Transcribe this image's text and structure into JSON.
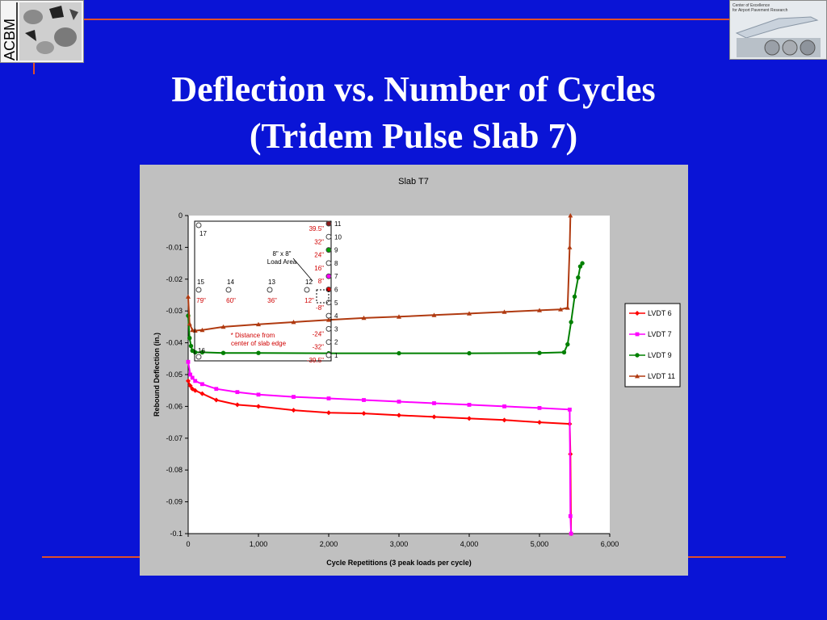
{
  "slide": {
    "title_line1": "Deflection vs. Number of Cycles",
    "title_line2": "(Tridem Pulse Slab 7)",
    "logo_left_text": "ACBM",
    "logo_right_text": [
      "Center of Excellence",
      "for Airport Pavement Research"
    ]
  },
  "colors": {
    "background": "#0a14d6",
    "accent_rule": "#e0502a",
    "plot_panel": "#c0c0c0"
  },
  "chart_data": {
    "type": "line",
    "title": "Slab T7",
    "xlabel": "Cycle Repetitions (3 peak loads per cycle)",
    "ylabel": "Rebound Deflection (in.)",
    "xlim": [
      0,
      6000
    ],
    "ylim": [
      -0.1,
      0
    ],
    "xticks": [
      0,
      1000,
      2000,
      3000,
      4000,
      5000,
      6000
    ],
    "xtick_labels": [
      "0",
      "1,000",
      "2,000",
      "3,000",
      "4,000",
      "5,000",
      "6,000"
    ],
    "yticks": [
      0,
      -0.01,
      -0.02,
      -0.03,
      -0.04,
      -0.05,
      -0.06,
      -0.07,
      -0.08,
      -0.09,
      -0.1
    ],
    "ytick_labels": [
      "0",
      "-0.01",
      "-0.02",
      "-0.03",
      "-0.04",
      "-0.05",
      "-0.06",
      "-0.07",
      "-0.08",
      "-0.09",
      "-0.1"
    ],
    "grid": false,
    "legend_position": "right",
    "series": [
      {
        "name": "LVDT 6",
        "color": "#ff0000",
        "marker": "diamond",
        "x": [
          0,
          30,
          60,
          100,
          200,
          400,
          700,
          1000,
          1500,
          2000,
          2500,
          3000,
          3500,
          4000,
          4500,
          5000,
          5430,
          5440,
          5450
        ],
        "y": [
          -0.052,
          -0.0535,
          -0.0545,
          -0.055,
          -0.056,
          -0.058,
          -0.0595,
          -0.06,
          -0.0612,
          -0.062,
          -0.0622,
          -0.0628,
          -0.0633,
          -0.0638,
          -0.0643,
          -0.065,
          -0.0655,
          -0.075,
          -0.1
        ]
      },
      {
        "name": "LVDT 7",
        "color": "#ff00ff",
        "marker": "square",
        "x": [
          0,
          30,
          60,
          100,
          200,
          400,
          700,
          1000,
          1500,
          2000,
          2500,
          3000,
          3500,
          4000,
          4500,
          5000,
          5430,
          5440,
          5450
        ],
        "y": [
          -0.046,
          -0.05,
          -0.051,
          -0.052,
          -0.053,
          -0.0545,
          -0.0555,
          -0.0563,
          -0.057,
          -0.0575,
          -0.058,
          -0.0585,
          -0.059,
          -0.0595,
          -0.06,
          -0.0605,
          -0.061,
          -0.0945,
          -0.1
        ]
      },
      {
        "name": "LVDT 9",
        "color": "#008000",
        "marker": "circle",
        "x": [
          0,
          20,
          40,
          60,
          100,
          200,
          500,
          1000,
          2000,
          3000,
          4000,
          5000,
          5350,
          5400,
          5450,
          5500,
          5550,
          5580,
          5610
        ],
        "y": [
          -0.0315,
          -0.0385,
          -0.041,
          -0.0425,
          -0.043,
          -0.043,
          -0.0432,
          -0.0432,
          -0.0433,
          -0.0433,
          -0.0433,
          -0.0432,
          -0.043,
          -0.0405,
          -0.0335,
          -0.0255,
          -0.0195,
          -0.016,
          -0.015
        ]
      },
      {
        "name": "LVDT 11",
        "color": "#b03a10",
        "marker": "triangle",
        "x": [
          0,
          20,
          60,
          100,
          200,
          500,
          1000,
          1500,
          2000,
          2500,
          3000,
          3500,
          4000,
          4500,
          5000,
          5300,
          5400,
          5430,
          5440
        ],
        "y": [
          -0.0255,
          -0.034,
          -0.036,
          -0.0362,
          -0.036,
          -0.035,
          -0.0342,
          -0.0335,
          -0.0328,
          -0.0322,
          -0.0318,
          -0.0313,
          -0.0308,
          -0.0303,
          -0.0298,
          -0.0295,
          -0.029,
          -0.01,
          0
        ]
      }
    ],
    "inset": {
      "sensors_right": [
        {
          "num": "11",
          "dist": "39.5\"",
          "fill": "#8b1a1a"
        },
        {
          "num": "10",
          "dist": "32\"",
          "fill": "none"
        },
        {
          "num": "9",
          "dist": "24\"",
          "fill": "#00a000"
        },
        {
          "num": "8",
          "dist": "16\"",
          "fill": "none"
        },
        {
          "num": "7",
          "dist": "8\"",
          "fill": "#ff00ff"
        },
        {
          "num": "6",
          "dist": "",
          "fill": "#e00000"
        },
        {
          "num": "5",
          "dist": "-8\"",
          "fill": "none"
        },
        {
          "num": "4",
          "dist": "",
          "fill": "none"
        },
        {
          "num": "3",
          "dist": "-24\"",
          "fill": "none"
        },
        {
          "num": "2",
          "dist": "-32\"",
          "fill": "none"
        },
        {
          "num": "1",
          "dist": "-39.5\"",
          "fill": "none"
        }
      ],
      "sensors_row": [
        {
          "num": "15",
          "dist": "79\""
        },
        {
          "num": "14",
          "dist": "60\""
        },
        {
          "num": "13",
          "dist": "36\""
        },
        {
          "num": "12",
          "dist": "12\""
        }
      ],
      "corner_top": "17",
      "corner_bottom": "16",
      "load_area_line1": "8\" x 8\"",
      "load_area_line2": "Load Area",
      "note_line1": "* Distance from",
      "note_line2": "center of slab edge"
    }
  }
}
